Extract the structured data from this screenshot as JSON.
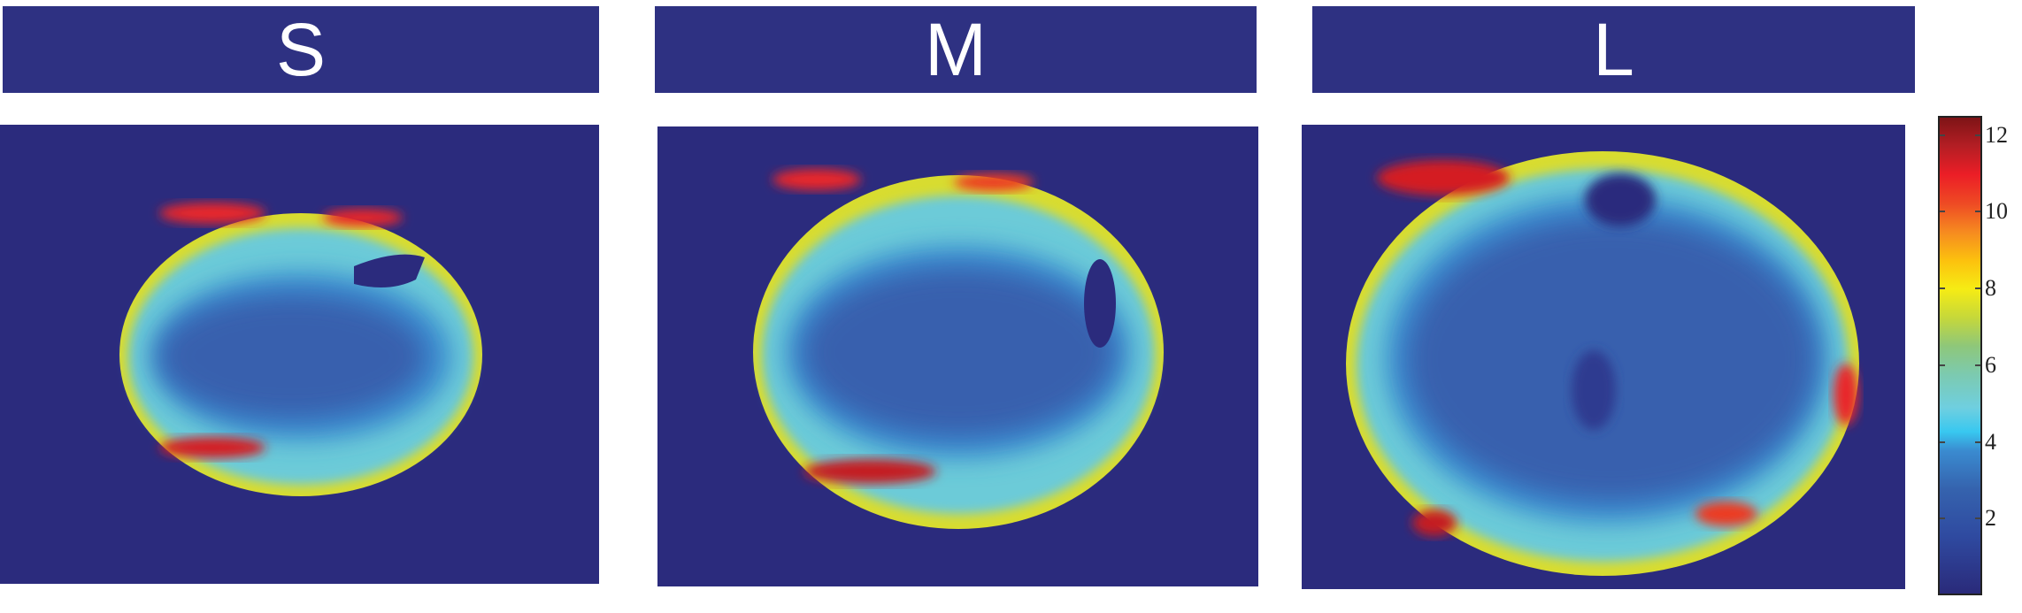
{
  "panels": [
    {
      "label": "S"
    },
    {
      "label": "M"
    },
    {
      "label": "L"
    }
  ],
  "colorbar": {
    "min": 0,
    "max": 12.5,
    "ticks": [
      "2",
      "4",
      "6",
      "8",
      "10",
      "12"
    ],
    "colormap": "jet"
  },
  "colors": {
    "header_bg": "#2e3182",
    "background": "#2b2b7d"
  }
}
